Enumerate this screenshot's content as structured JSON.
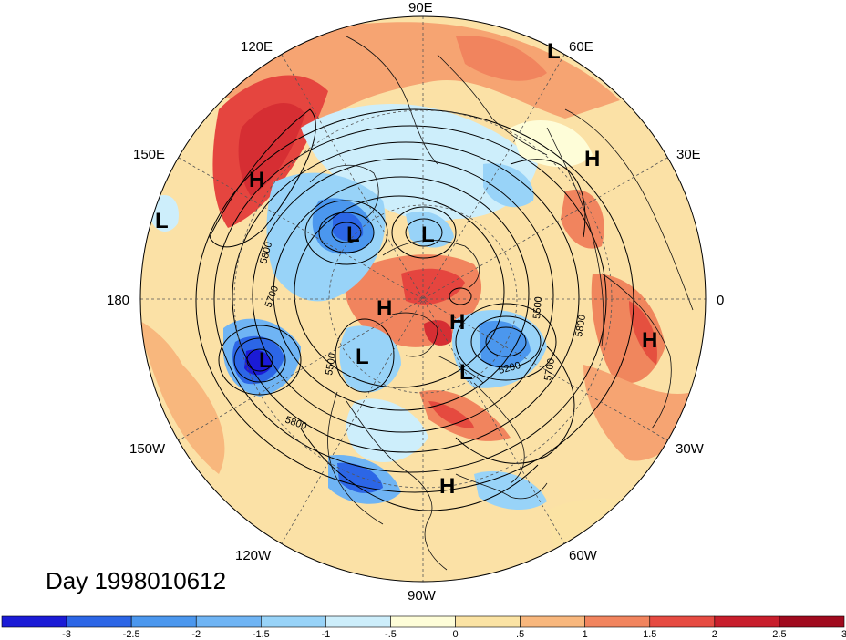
{
  "title": "Day 1998010612",
  "longitude_labels": {
    "lon_90E": "90E",
    "lon_60E": "60E",
    "lon_30E": "30E",
    "lon_0": "0",
    "lon_30W": "30W",
    "lon_60W": "60W",
    "lon_90W": "90W",
    "lon_120W": "120W",
    "lon_150W": "150W",
    "lon_180": "180",
    "lon_150E": "150E",
    "lon_120E": "120E"
  },
  "pressure_centers": [
    {
      "type": "H",
      "label": "H",
      "region": "east-asia"
    },
    {
      "type": "L",
      "label": "L",
      "region": "north-pacific-west"
    },
    {
      "type": "L",
      "label": "L",
      "region": "russia"
    },
    {
      "type": "L",
      "label": "L",
      "region": "siberia"
    },
    {
      "type": "H",
      "label": "H",
      "region": "arctic"
    },
    {
      "type": "H",
      "label": "H",
      "region": "arctic-greenland"
    },
    {
      "type": "L",
      "label": "L",
      "region": "north-pacific"
    },
    {
      "type": "L",
      "label": "L",
      "region": "canada"
    },
    {
      "type": "L",
      "label": "L",
      "region": "north-atlantic"
    },
    {
      "type": "H",
      "label": "H",
      "region": "subtropical-atlantic"
    },
    {
      "type": "H",
      "label": "H",
      "region": "north-africa"
    },
    {
      "type": "H",
      "label": "H",
      "region": "west-africa"
    },
    {
      "type": "L",
      "label": "L",
      "region": "india"
    }
  ],
  "contour_labels": {
    "c5800a": "5800",
    "c5700a": "5700",
    "c5500": "5500",
    "c5800b": "5800",
    "c5200": "5200",
    "c5700b": "5700",
    "c5800c": "5800",
    "c5500b": "5500"
  },
  "colorbar": {
    "colors": [
      "#1b1bd6",
      "#2c66e6",
      "#4b97ee",
      "#6fb4f4",
      "#98d3f8",
      "#cdeefb",
      "#fefdd8",
      "#fbe3a4",
      "#f8b77d",
      "#f1845e",
      "#e64b42",
      "#c81e2c",
      "#a00a1e"
    ],
    "tick_labels": [
      "-3",
      "-2.5",
      "-2",
      "-1.5",
      "-1",
      "-.5",
      "0",
      ".5",
      "1",
      "1.5",
      "2",
      "2.5",
      "3"
    ]
  }
}
